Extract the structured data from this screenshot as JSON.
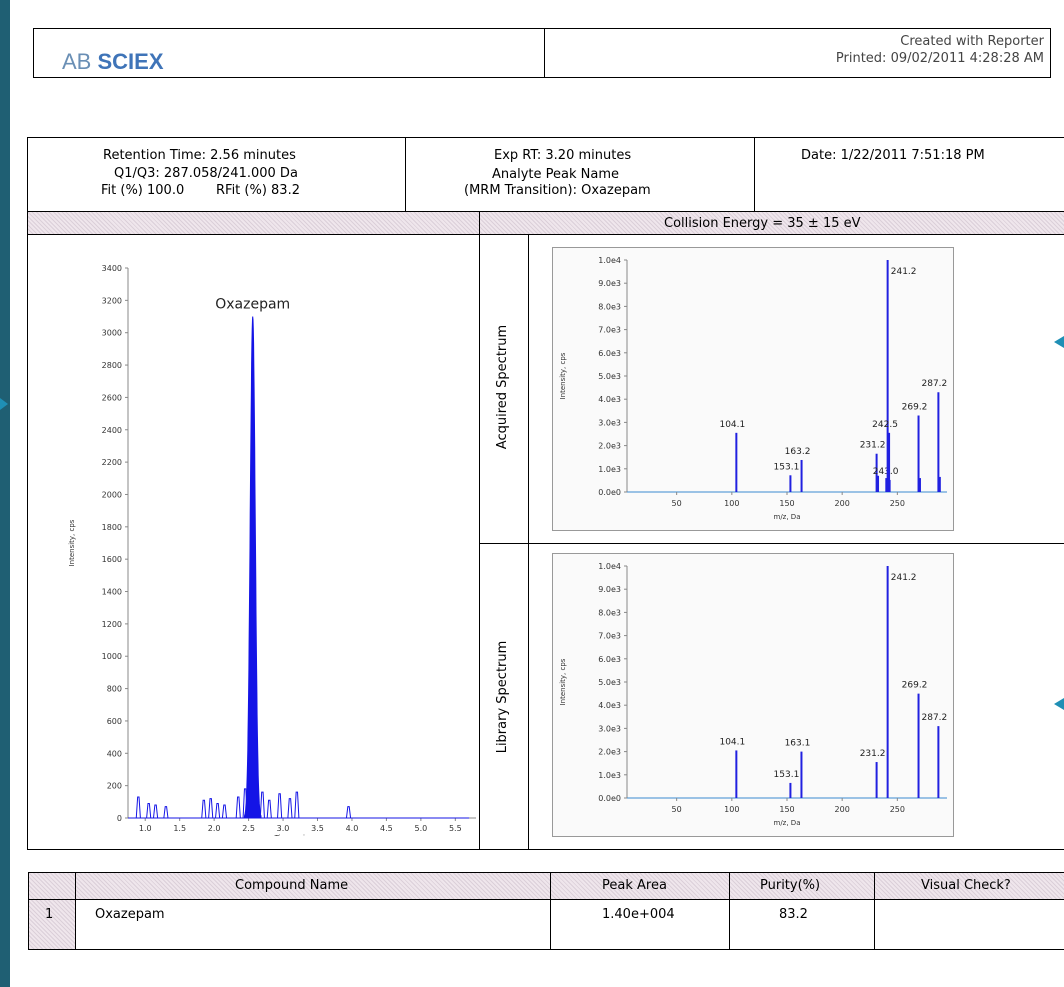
{
  "header": {
    "logo_light": "AB ",
    "logo_bold": "SCIEX",
    "created_with": "Created with Reporter",
    "printed": "Printed: 09/02/2011 4:28:28 AM"
  },
  "info": {
    "retention_time": "Retention Time:  2.56 minutes",
    "q1q3": "Q1/Q3: 287.058/241.000 Da",
    "fit": "Fit (%) 100.0",
    "rfit": "RFit (%) 83.2",
    "exp_rt": "Exp RT: 3.20 minutes",
    "analyte_label": "Analyte Peak Name",
    "mrm": "(MRM Transition): Oxazepam",
    "date": "Date: 1/22/2011 7:51:18 PM",
    "collision_energy": "Collision Energy = 35 ± 15 eV"
  },
  "side_labels": {
    "acquired": "Acquired Spectrum",
    "library": "Library Spectrum"
  },
  "chart_data": [
    {
      "type": "line",
      "title": "Oxazepam",
      "xlabel": "Time, min",
      "ylabel": "Intensity, cps",
      "xlim": [
        0.75,
        5.8
      ],
      "ylim": [
        0,
        3400
      ],
      "xticks": [
        "1.0",
        "1.5",
        "2.0",
        "2.5",
        "3.0",
        "3.5",
        "4.0",
        "4.5",
        "5.0",
        "5.5"
      ],
      "yticks": [
        "0",
        "200",
        "400",
        "600",
        "800",
        "1000",
        "1200",
        "1400",
        "1600",
        "1800",
        "2000",
        "2200",
        "2400",
        "2600",
        "2800",
        "3000",
        "3200",
        "3400"
      ],
      "color": "#1414e6",
      "peak": {
        "rt": 2.56,
        "height": 3100,
        "label": "Oxazepam"
      },
      "noise": [
        [
          0.9,
          130
        ],
        [
          1.05,
          90
        ],
        [
          1.15,
          80
        ],
        [
          1.3,
          70
        ],
        [
          1.85,
          110
        ],
        [
          1.95,
          120
        ],
        [
          2.05,
          90
        ],
        [
          2.15,
          80
        ],
        [
          2.35,
          130
        ],
        [
          2.45,
          180
        ],
        [
          2.7,
          160
        ],
        [
          2.8,
          110
        ],
        [
          2.95,
          150
        ],
        [
          3.1,
          120
        ],
        [
          3.2,
          160
        ],
        [
          3.95,
          70
        ]
      ]
    },
    {
      "type": "bar",
      "name": "Acquired Spectrum",
      "xlabel": "m/z, Da",
      "ylabel": "Intensity, cps",
      "xlim": [
        5,
        295
      ],
      "ylim": [
        0,
        10000
      ],
      "xticks": [
        "50",
        "100",
        "150",
        "200",
        "250"
      ],
      "yticks": [
        "0.0e0",
        "1.0e3",
        "2.0e3",
        "3.0e3",
        "4.0e3",
        "5.0e3",
        "6.0e3",
        "7.0e3",
        "8.0e3",
        "9.0e3",
        "1.0e4"
      ],
      "peaks": [
        {
          "x": 104.1,
          "y": 2550,
          "label": "104.1"
        },
        {
          "x": 153.1,
          "y": 720,
          "label": "153.1"
        },
        {
          "x": 163.2,
          "y": 1380,
          "label": "163.2"
        },
        {
          "x": 231.2,
          "y": 1650,
          "label": "231.2"
        },
        {
          "x": 243.0,
          "y": 520,
          "label": "243.0"
        },
        {
          "x": 241.2,
          "y": 10000,
          "label": "241.2"
        },
        {
          "x": 242.5,
          "y": 2550,
          "label": "242.5"
        },
        {
          "x": 269.2,
          "y": 3300,
          "label": "269.2"
        },
        {
          "x": 287.2,
          "y": 4300,
          "label": "287.2"
        }
      ],
      "minor_peaks": [
        [
          232.5,
          700
        ],
        [
          240,
          600
        ],
        [
          270.5,
          600
        ],
        [
          288.5,
          650
        ]
      ]
    },
    {
      "type": "bar",
      "name": "Library Spectrum",
      "xlabel": "m/z, Da",
      "ylabel": "Intensity, cps",
      "xlim": [
        5,
        295
      ],
      "ylim": [
        0,
        10000
      ],
      "xticks": [
        "50",
        "100",
        "150",
        "200",
        "250"
      ],
      "yticks": [
        "0.0e0",
        "1.0e3",
        "2.0e3",
        "3.0e3",
        "4.0e3",
        "5.0e3",
        "6.0e3",
        "7.0e3",
        "8.0e3",
        "9.0e3",
        "1.0e4"
      ],
      "peaks": [
        {
          "x": 104.1,
          "y": 2050,
          "label": "104.1"
        },
        {
          "x": 153.1,
          "y": 650,
          "label": "153.1"
        },
        {
          "x": 163.1,
          "y": 2000,
          "label": "163.1"
        },
        {
          "x": 231.2,
          "y": 1550,
          "label": "231.2"
        },
        {
          "x": 241.2,
          "y": 10000,
          "label": "241.2"
        },
        {
          "x": 269.2,
          "y": 4500,
          "label": "269.2"
        },
        {
          "x": 287.2,
          "y": 3100,
          "label": "287.2"
        }
      ],
      "minor_peaks": []
    }
  ],
  "table": {
    "headers": [
      "",
      "Compound Name",
      "Peak Area",
      "Purity(%)",
      "Visual Check?"
    ],
    "rows": [
      [
        "1",
        "Oxazepam",
        "1.40e+004",
        "83.2",
        ""
      ]
    ]
  }
}
